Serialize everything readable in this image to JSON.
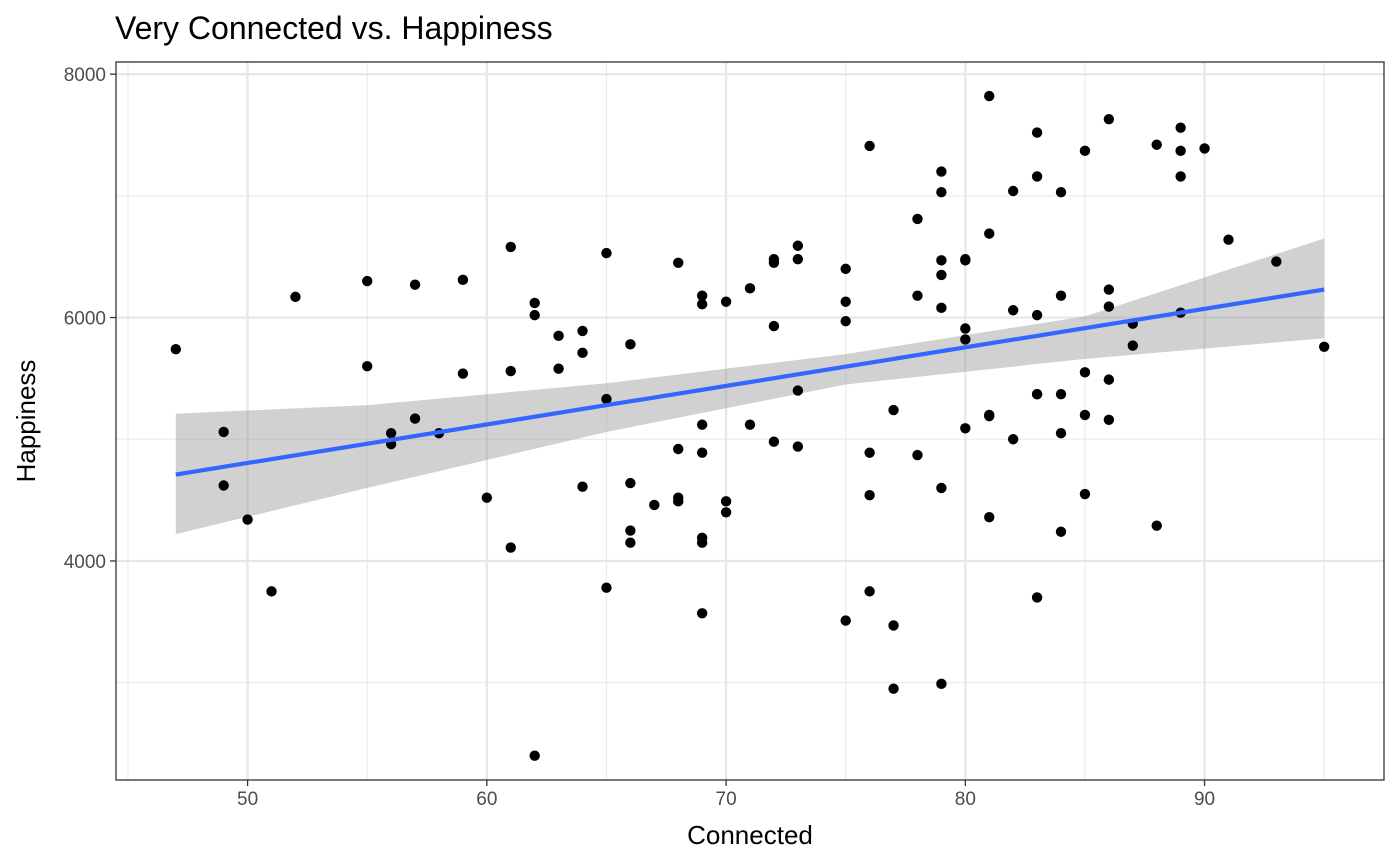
{
  "chart_data": {
    "type": "scatter",
    "title": "Very Connected vs. Happiness",
    "xlabel": "Connected",
    "ylabel": "Happiness",
    "xlim": [
      44.5,
      97.5
    ],
    "ylim": [
      2200,
      8100
    ],
    "x_ticks": [
      50,
      60,
      70,
      80,
      90
    ],
    "x_tick_labels": [
      "50",
      "60",
      "70",
      "80",
      "90"
    ],
    "y_ticks": [
      4000,
      6000,
      8000
    ],
    "y_tick_labels": [
      "4000",
      "6000",
      "8000"
    ],
    "grid": true,
    "legend": "none",
    "points": [
      [
        47,
        5740
      ],
      [
        49,
        5060
      ],
      [
        49,
        4620
      ],
      [
        50,
        4340
      ],
      [
        51,
        3750
      ],
      [
        52,
        6170
      ],
      [
        55,
        6300
      ],
      [
        55,
        5600
      ],
      [
        56,
        5050
      ],
      [
        56,
        4960
      ],
      [
        57,
        6270
      ],
      [
        57,
        5170
      ],
      [
        58,
        5050
      ],
      [
        59,
        6310
      ],
      [
        59,
        5540
      ],
      [
        60,
        4520
      ],
      [
        61,
        6580
      ],
      [
        61,
        5560
      ],
      [
        61,
        4110
      ],
      [
        62,
        6120
      ],
      [
        62,
        6020
      ],
      [
        62,
        2400
      ],
      [
        63,
        5850
      ],
      [
        63,
        5580
      ],
      [
        64,
        5890
      ],
      [
        64,
        5710
      ],
      [
        64,
        4610
      ],
      [
        65,
        6530
      ],
      [
        65,
        5330
      ],
      [
        65,
        3780
      ],
      [
        66,
        5780
      ],
      [
        66,
        4640
      ],
      [
        66,
        4250
      ],
      [
        66,
        4150
      ],
      [
        67,
        4460
      ],
      [
        68,
        6450
      ],
      [
        68,
        4920
      ],
      [
        68,
        4520
      ],
      [
        68,
        4490
      ],
      [
        69,
        6180
      ],
      [
        69,
        6110
      ],
      [
        69,
        5120
      ],
      [
        69,
        4890
      ],
      [
        69,
        4190
      ],
      [
        69,
        4150
      ],
      [
        69,
        3570
      ],
      [
        70,
        6130
      ],
      [
        70,
        4490
      ],
      [
        70,
        4400
      ],
      [
        71,
        6240
      ],
      [
        71,
        5120
      ],
      [
        72,
        6480
      ],
      [
        72,
        6450
      ],
      [
        72,
        5930
      ],
      [
        72,
        4980
      ],
      [
        73,
        6590
      ],
      [
        73,
        6480
      ],
      [
        73,
        5400
      ],
      [
        73,
        4940
      ],
      [
        75,
        6400
      ],
      [
        75,
        6130
      ],
      [
        75,
        5970
      ],
      [
        75,
        3510
      ],
      [
        76,
        7410
      ],
      [
        76,
        4890
      ],
      [
        76,
        4540
      ],
      [
        76,
        3750
      ],
      [
        77,
        5240
      ],
      [
        77,
        3470
      ],
      [
        77,
        2950
      ],
      [
        78,
        6810
      ],
      [
        78,
        6180
      ],
      [
        78,
        4870
      ],
      [
        79,
        7200
      ],
      [
        79,
        7030
      ],
      [
        79,
        6470
      ],
      [
        79,
        6350
      ],
      [
        79,
        6080
      ],
      [
        79,
        4600
      ],
      [
        79,
        2990
      ],
      [
        80,
        6480
      ],
      [
        80,
        6470
      ],
      [
        80,
        5910
      ],
      [
        80,
        5820
      ],
      [
        80,
        5090
      ],
      [
        81,
        7820
      ],
      [
        81,
        6690
      ],
      [
        81,
        5200
      ],
      [
        81,
        5190
      ],
      [
        81,
        4360
      ],
      [
        82,
        7040
      ],
      [
        82,
        6060
      ],
      [
        82,
        5000
      ],
      [
        83,
        7520
      ],
      [
        83,
        7160
      ],
      [
        83,
        6020
      ],
      [
        83,
        5370
      ],
      [
        83,
        5370
      ],
      [
        83,
        3700
      ],
      [
        84,
        7030
      ],
      [
        84,
        6180
      ],
      [
        84,
        5370
      ],
      [
        84,
        5050
      ],
      [
        84,
        4240
      ],
      [
        85,
        7370
      ],
      [
        85,
        5550
      ],
      [
        85,
        5200
      ],
      [
        85,
        4550
      ],
      [
        86,
        7630
      ],
      [
        86,
        6230
      ],
      [
        86,
        6090
      ],
      [
        86,
        5490
      ],
      [
        86,
        5160
      ],
      [
        87,
        5950
      ],
      [
        87,
        5770
      ],
      [
        88,
        7420
      ],
      [
        88,
        4290
      ],
      [
        89,
        7560
      ],
      [
        89,
        7370
      ],
      [
        89,
        7160
      ],
      [
        89,
        6040
      ],
      [
        90,
        7390
      ],
      [
        91,
        6640
      ],
      [
        93,
        6460
      ],
      [
        95,
        5760
      ]
    ],
    "fit_line": {
      "type": "linear",
      "x": [
        47,
        95
      ],
      "y": [
        4710,
        6230
      ],
      "color": "#3366FF"
    },
    "confidence_band": {
      "x": [
        47,
        55,
        65,
        75,
        85,
        95
      ],
      "lower": [
        4220,
        4600,
        5060,
        5450,
        5660,
        5830
      ],
      "upper": [
        5210,
        5280,
        5460,
        5700,
        6010,
        6650
      ],
      "color": "#999999"
    },
    "point_color": "#000000"
  }
}
